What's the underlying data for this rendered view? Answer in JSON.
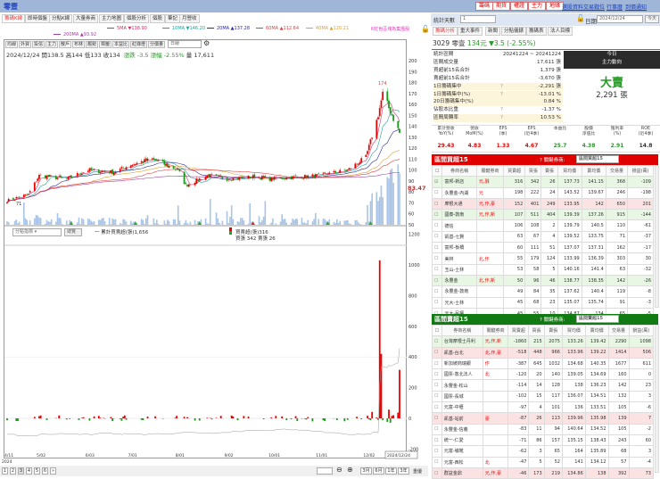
{
  "window": {
    "title": "零壹"
  },
  "top_buttons": [
    "籌碼",
    "期貨",
    "權證",
    "主力",
    "地緣"
  ],
  "top_links": [
    "選股資料",
    "交易戰位",
    "行事曆",
    "到價通知"
  ],
  "tabs": [
    "籌碼K線",
    "即時個盤",
    "分點K線",
    "大量券商",
    "主力地圖",
    "個股分析",
    "個股",
    "筆記",
    "月營收"
  ],
  "ma_legend": [
    {
      "label": "5MA ▼138.90",
      "color": "#d0306a"
    },
    {
      "label": "10MA ▼146.20",
      "color": "#20a0a0"
    },
    {
      "label": "20MA ▲137.28",
      "color": "#2a2a9a"
    },
    {
      "label": "60MA ▲112.64",
      "color": "#e04040"
    },
    {
      "label": "40MA ▲120.21",
      "color": "#e0a030"
    },
    {
      "label": "200MA ▲93.92",
      "color": "#a040a0"
    }
  ],
  "ma_note": "K紅色區塊為集團股",
  "toolbar": {
    "buttons": [
      "均線",
      "外資",
      "投信",
      "主力",
      "散戶",
      "布林",
      "趨勢",
      "標籤",
      "本益比",
      "紅綠燈",
      "分價量"
    ],
    "period": "日線"
  },
  "quote": {
    "date": "2024/12/24",
    "open_label": "開",
    "open": "138.5",
    "high_label": "高",
    "high": "144",
    "low_label": "低",
    "low": "133",
    "close_label": "收",
    "close": "134",
    "change": "漲跌 -3.5",
    "pct": "漲幅 -2.55%",
    "vol": "量 17,611"
  },
  "price_axis": [
    "200",
    "190",
    "180",
    "170",
    "160",
    "150",
    "140",
    "130",
    "120",
    "110",
    "100",
    "90",
    "80",
    "70",
    "60",
    "50"
  ],
  "price_marks": {
    "peak": "174",
    "low": "71",
    "ref": "83.47"
  },
  "lower": {
    "select": "分點指標",
    "button": "總覽",
    "cum_label": "一 累計買賣超(張)1,656",
    "today_label": "買賣超(張)316",
    "today_detail": "買張 342 賣張 26",
    "axis": [
      "1200",
      "1000",
      "800",
      "600",
      "400",
      "200",
      "0",
      "-200"
    ]
  },
  "x_axis": [
    "4/11",
    "5/02",
    "6/03",
    "7/01",
    "8/01",
    "9/02",
    "10/01",
    "11/01",
    "12/02"
  ],
  "x_axis_year": "2024",
  "x_axis_current": "2024/12/24",
  "pagination": [
    "1",
    "2",
    "3",
    "4",
    "5",
    "6",
    "»"
  ],
  "range_buttons": [
    "3月",
    "6月",
    "1年",
    "3年"
  ],
  "range_extra": "重優",
  "chart_data": {
    "type": "candlestick",
    "closes_approx": [
      [
        "2024-04-11",
        72
      ],
      [
        "2024-04-25",
        78
      ],
      [
        "2024-05-02",
        95
      ],
      [
        "2024-05-20",
        92
      ],
      [
        "2024-06-03",
        100
      ],
      [
        "2024-06-20",
        98
      ],
      [
        "2024-07-01",
        105
      ],
      [
        "2024-07-15",
        110
      ],
      [
        "2024-08-01",
        100
      ],
      [
        "2024-08-06",
        86
      ],
      [
        "2024-08-20",
        95
      ],
      [
        "2024-09-02",
        92
      ],
      [
        "2024-09-20",
        94
      ],
      [
        "2024-10-01",
        92
      ],
      [
        "2024-11-01",
        95
      ],
      [
        "2024-11-20",
        100
      ],
      [
        "2024-12-02",
        112
      ],
      [
        "2024-12-10",
        150
      ],
      [
        "2024-12-13",
        170
      ],
      [
        "2024-12-16",
        160
      ],
      [
        "2024-12-24",
        134
      ]
    ],
    "ylim": [
      50,
      200
    ],
    "lower_ylim": [
      -200,
      1200
    ],
    "lower_spikes": [
      [
        "2024-12-11",
        1030
      ],
      [
        "2024-12-12",
        420
      ],
      [
        "2024-12-24",
        316
      ]
    ]
  },
  "right": {
    "days_label": "統計天數",
    "days_value": "1",
    "date_label": "日期",
    "date_value": "2024/12/24",
    "today_btn": "今天",
    "tabs": [
      "籌碼分析",
      "重大事件",
      "新聞",
      "分點儀錶",
      "籌碼表",
      "法人目標"
    ],
    "stock": {
      "code_name": "3029 零壹",
      "price": "134元",
      "change": "▼3.5 (-2.55%)"
    },
    "stats": [
      {
        "label": "統計區間",
        "value": "20241224 ~ 20241224"
      },
      {
        "label": "區間成交量",
        "value": "17,611 張"
      },
      {
        "label": "買超前15名合計",
        "value": "1,379 張"
      },
      {
        "label": "賣超前15名合計",
        "value": "-3,670 張"
      },
      {
        "label": "1日籌碼集中",
        "value": "-2,291 張",
        "q": "?"
      },
      {
        "label": "1日籌碼集中(%)",
        "value": "-13.01 %",
        "q": "?"
      },
      {
        "label": "20日籌碼集中(%)",
        "value": "0.84 %"
      },
      {
        "label": "佔股本比重",
        "value": "-1.37 %",
        "q": "?"
      },
      {
        "label": "區間周轉率",
        "value": "10.53 %",
        "q": "?"
      }
    ],
    "today_box": {
      "title": "今日",
      "subtitle": "主力動向",
      "direction": "大賣",
      "amount": "2,291 張"
    },
    "fin_headers": [
      "累計營收\nYoY(%)",
      "營收\nMoM(%)",
      "EPS\n(季)",
      "EPS\n(近4季)",
      "本益比",
      "股價\n淨值比",
      "殖利率\n(%)",
      "ROE\n(近4季)"
    ],
    "fin_values": [
      "29.43",
      "4.83",
      "1.33",
      "4.67",
      "25.7",
      "4.38",
      "2.91",
      "14.8"
    ],
    "fin_colors": [
      "#e00",
      "#e00",
      "#e00",
      "#e00",
      "#2a9a2a",
      "#2a9a2a",
      "#2a9a2a",
      "#333"
    ],
    "buy_title": "區間買超15",
    "sell_title": "區間賣超15",
    "key_label": "? 關鍵券商:",
    "buy_select": "區間買超15",
    "sell_select": "區間賣超15",
    "columns": [
      "券商名稱",
      "關鍵券商",
      "買賣超",
      "買張",
      "賣張",
      "買均價",
      "賣均價",
      "交易量",
      "損益(萬)"
    ],
    "buy_rows": [
      [
        "富邦-新店",
        "元,融",
        "316",
        "342",
        "26",
        "137.73",
        "141.15",
        "368",
        "-109",
        "g",
        true
      ],
      [
        "永豐金-內湖",
        "元",
        "198",
        "222",
        "24",
        "143.52",
        "139.67",
        "246",
        "-198",
        "",
        false
      ],
      [
        "摩根大通",
        "元,作,豪",
        "152",
        "401",
        "249",
        "133.95",
        "142",
        "650",
        "201",
        "p",
        false
      ],
      [
        "國泰-敦南",
        "元,作,新",
        "107",
        "511",
        "404",
        "139.39",
        "137.26",
        "915",
        "-144",
        "g",
        false
      ],
      [
        "德信",
        "",
        "106",
        "108",
        "2",
        "139.79",
        "140.5",
        "110",
        "-61",
        "",
        false
      ],
      [
        "凱基-七賢",
        "",
        "63",
        "67",
        "4",
        "139.52",
        "133.75",
        "71",
        "-37",
        "",
        false
      ],
      [
        "富邦-板橋",
        "",
        "60",
        "111",
        "51",
        "137.07",
        "137.31",
        "162",
        "-17",
        "",
        false
      ],
      [
        "美林",
        "北,作",
        "55",
        "179",
        "124",
        "133.99",
        "136.39",
        "303",
        "30",
        "",
        false
      ],
      [
        "玉山-士林",
        "",
        "53",
        "58",
        "5",
        "140.16",
        "141.4",
        "63",
        "-32",
        "",
        false
      ],
      [
        "永豐金",
        "北,作,新",
        "50",
        "96",
        "46",
        "138.77",
        "138.35",
        "142",
        "-26",
        "g",
        false
      ],
      [
        "永豐金-敦南",
        "",
        "49",
        "84",
        "35",
        "137.62",
        "140.4",
        "119",
        "-8",
        "",
        false
      ],
      [
        "元大-士林",
        "",
        "45",
        "68",
        "23",
        "135.07",
        "135.74",
        "91",
        "-3",
        "",
        false
      ],
      [
        "元大-民權",
        "",
        "45",
        "55",
        "10",
        "134.87",
        "134",
        "65",
        "-5",
        "",
        false
      ]
    ],
    "sell_rows": [
      [
        "台灣摩根士丹利",
        "元,作,新",
        "-1860",
        "215",
        "2075",
        "133.26",
        "139.42",
        "2290",
        "1098",
        "g",
        false
      ],
      [
        "凱基-台北",
        "北,作,豪",
        "-518",
        "448",
        "966",
        "133.96",
        "139.22",
        "1414",
        "506",
        "p",
        false
      ],
      [
        "新加坡商瑞銀",
        "作",
        "-387",
        "645",
        "1032",
        "134.68",
        "140.35",
        "1677",
        "611",
        "",
        false
      ],
      [
        "國票-敦北法人",
        "北",
        "-120",
        "20",
        "140",
        "139.05",
        "134.69",
        "160",
        "0",
        "",
        false
      ],
      [
        "永豐金-松山",
        "",
        "-114",
        "14",
        "128",
        "138",
        "136.23",
        "142",
        "23",
        "",
        false
      ],
      [
        "國票-長城",
        "",
        "-102",
        "15",
        "117",
        "136.07",
        "134.51",
        "132",
        "3",
        "",
        false
      ],
      [
        "元富-中壢",
        "",
        "-97",
        "4",
        "101",
        "136",
        "133.51",
        "105",
        "-6",
        "",
        false
      ],
      [
        "凱基-站前",
        "豪",
        "-87",
        "26",
        "113",
        "139.96",
        "135.98",
        "139",
        "7",
        "p",
        false
      ],
      [
        "永豐金-信義",
        "",
        "-83",
        "11",
        "94",
        "140.64",
        "134.52",
        "105",
        "-2",
        "",
        false
      ],
      [
        "統一-仁愛",
        "",
        "-71",
        "86",
        "157",
        "135.15",
        "138.43",
        "243",
        "60",
        "",
        false
      ],
      [
        "元富-埔墘",
        "",
        "-62",
        "3",
        "65",
        "164",
        "135.89",
        "68",
        "3",
        "",
        false
      ],
      [
        "元富-西松",
        "北",
        "-47",
        "5",
        "52",
        "141",
        "134.12",
        "57",
        "-4",
        "",
        false
      ],
      [
        "群益金鼎",
        "元,作,豪",
        "-46",
        "173",
        "219",
        "134.86",
        "138",
        "392",
        "73",
        "p",
        false
      ]
    ]
  }
}
